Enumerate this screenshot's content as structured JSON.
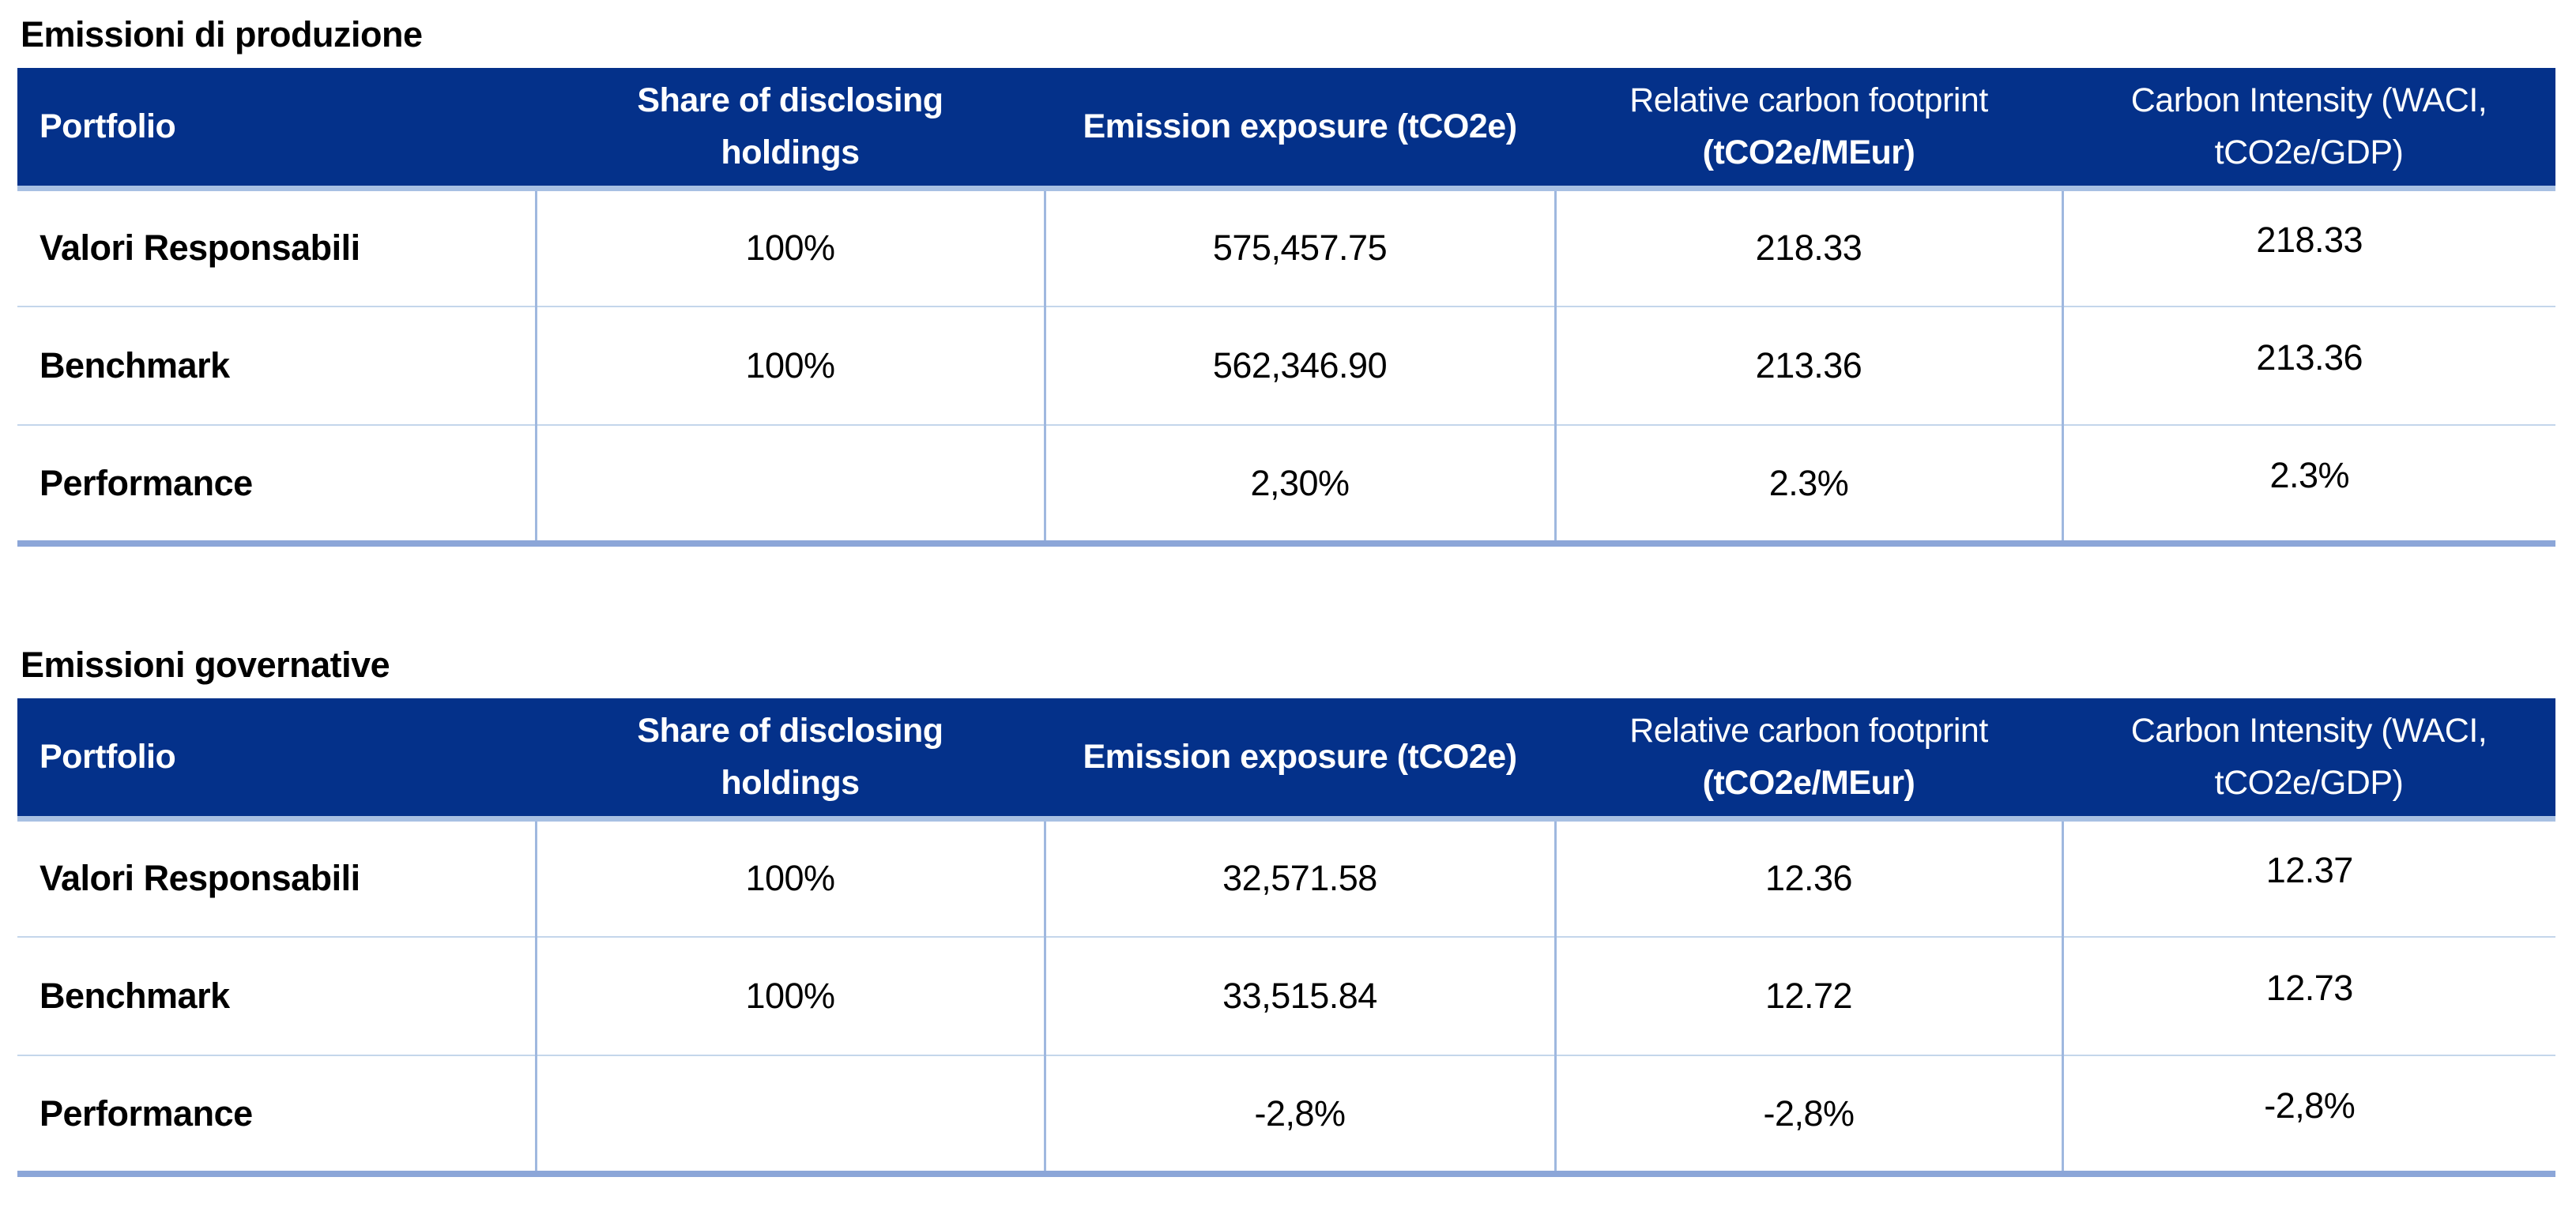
{
  "colors": {
    "header_bg": "#04318A",
    "header_text": "#FFFFFF",
    "header_underline": "#A8C0E3",
    "table_bottom_border": "#8CA6D8",
    "column_divider": "#9FB8DF",
    "row_divider": "#C4D6EB",
    "title_text": "#000000",
    "body_text": "#000000",
    "page_background": "#FFFFFF"
  },
  "tables": [
    {
      "title": "Emissioni di produzione",
      "columns": [
        {
          "align": "left",
          "lines": [
            {
              "text": "Portfolio",
              "bold": true
            }
          ]
        },
        {
          "align": "center",
          "lines": [
            {
              "text": "Share of disclosing",
              "bold": true
            },
            {
              "text": "holdings",
              "bold": true
            }
          ]
        },
        {
          "align": "center",
          "lines": [
            {
              "text": "Emission exposure (tCO2e)",
              "bold": true
            }
          ]
        },
        {
          "align": "center",
          "lines": [
            {
              "text": "Relative carbon footprint",
              "bold": false
            },
            {
              "text": "(tCO2e/MEur)",
              "bold": true
            }
          ]
        },
        {
          "align": "center",
          "lines": [
            {
              "text": "Carbon Intensity (WACI,",
              "bold": false
            },
            {
              "text": "tCO2e/GDP)",
              "bold": false
            }
          ]
        }
      ],
      "rows": [
        {
          "label": "Valori Responsabili",
          "values": [
            "100%",
            "575,457.75",
            "218.33",
            "218.33"
          ]
        },
        {
          "label": "Benchmark",
          "values": [
            "100%",
            "562,346.90",
            "213.36",
            "213.36"
          ]
        },
        {
          "label": "Performance",
          "values": [
            "",
            "2,30%",
            "2.3%",
            "2.3%"
          ]
        }
      ]
    },
    {
      "title": "Emissioni governative",
      "columns": [
        {
          "align": "left",
          "lines": [
            {
              "text": "Portfolio",
              "bold": true
            }
          ]
        },
        {
          "align": "center",
          "lines": [
            {
              "text": "Share of disclosing",
              "bold": true
            },
            {
              "text": "holdings",
              "bold": true
            }
          ]
        },
        {
          "align": "center",
          "lines": [
            {
              "text": "Emission exposure (tCO2e)",
              "bold": true
            }
          ]
        },
        {
          "align": "center",
          "lines": [
            {
              "text": "Relative carbon footprint",
              "bold": false
            },
            {
              "text": "(tCO2e/MEur)",
              "bold": true
            }
          ]
        },
        {
          "align": "center",
          "lines": [
            {
              "text": "Carbon Intensity (WACI,",
              "bold": false
            },
            {
              "text": "tCO2e/GDP)",
              "bold": false
            }
          ]
        }
      ],
      "rows": [
        {
          "label": "Valori Responsabili",
          "values": [
            "100%",
            "32,571.58",
            "12.36",
            "12.37"
          ]
        },
        {
          "label": "Benchmark",
          "values": [
            "100%",
            "33,515.84",
            "12.72",
            "12.73"
          ]
        },
        {
          "label": "Performance",
          "values": [
            "",
            "-2,8%",
            "-2,8%",
            "-2,8%"
          ]
        }
      ]
    }
  ]
}
